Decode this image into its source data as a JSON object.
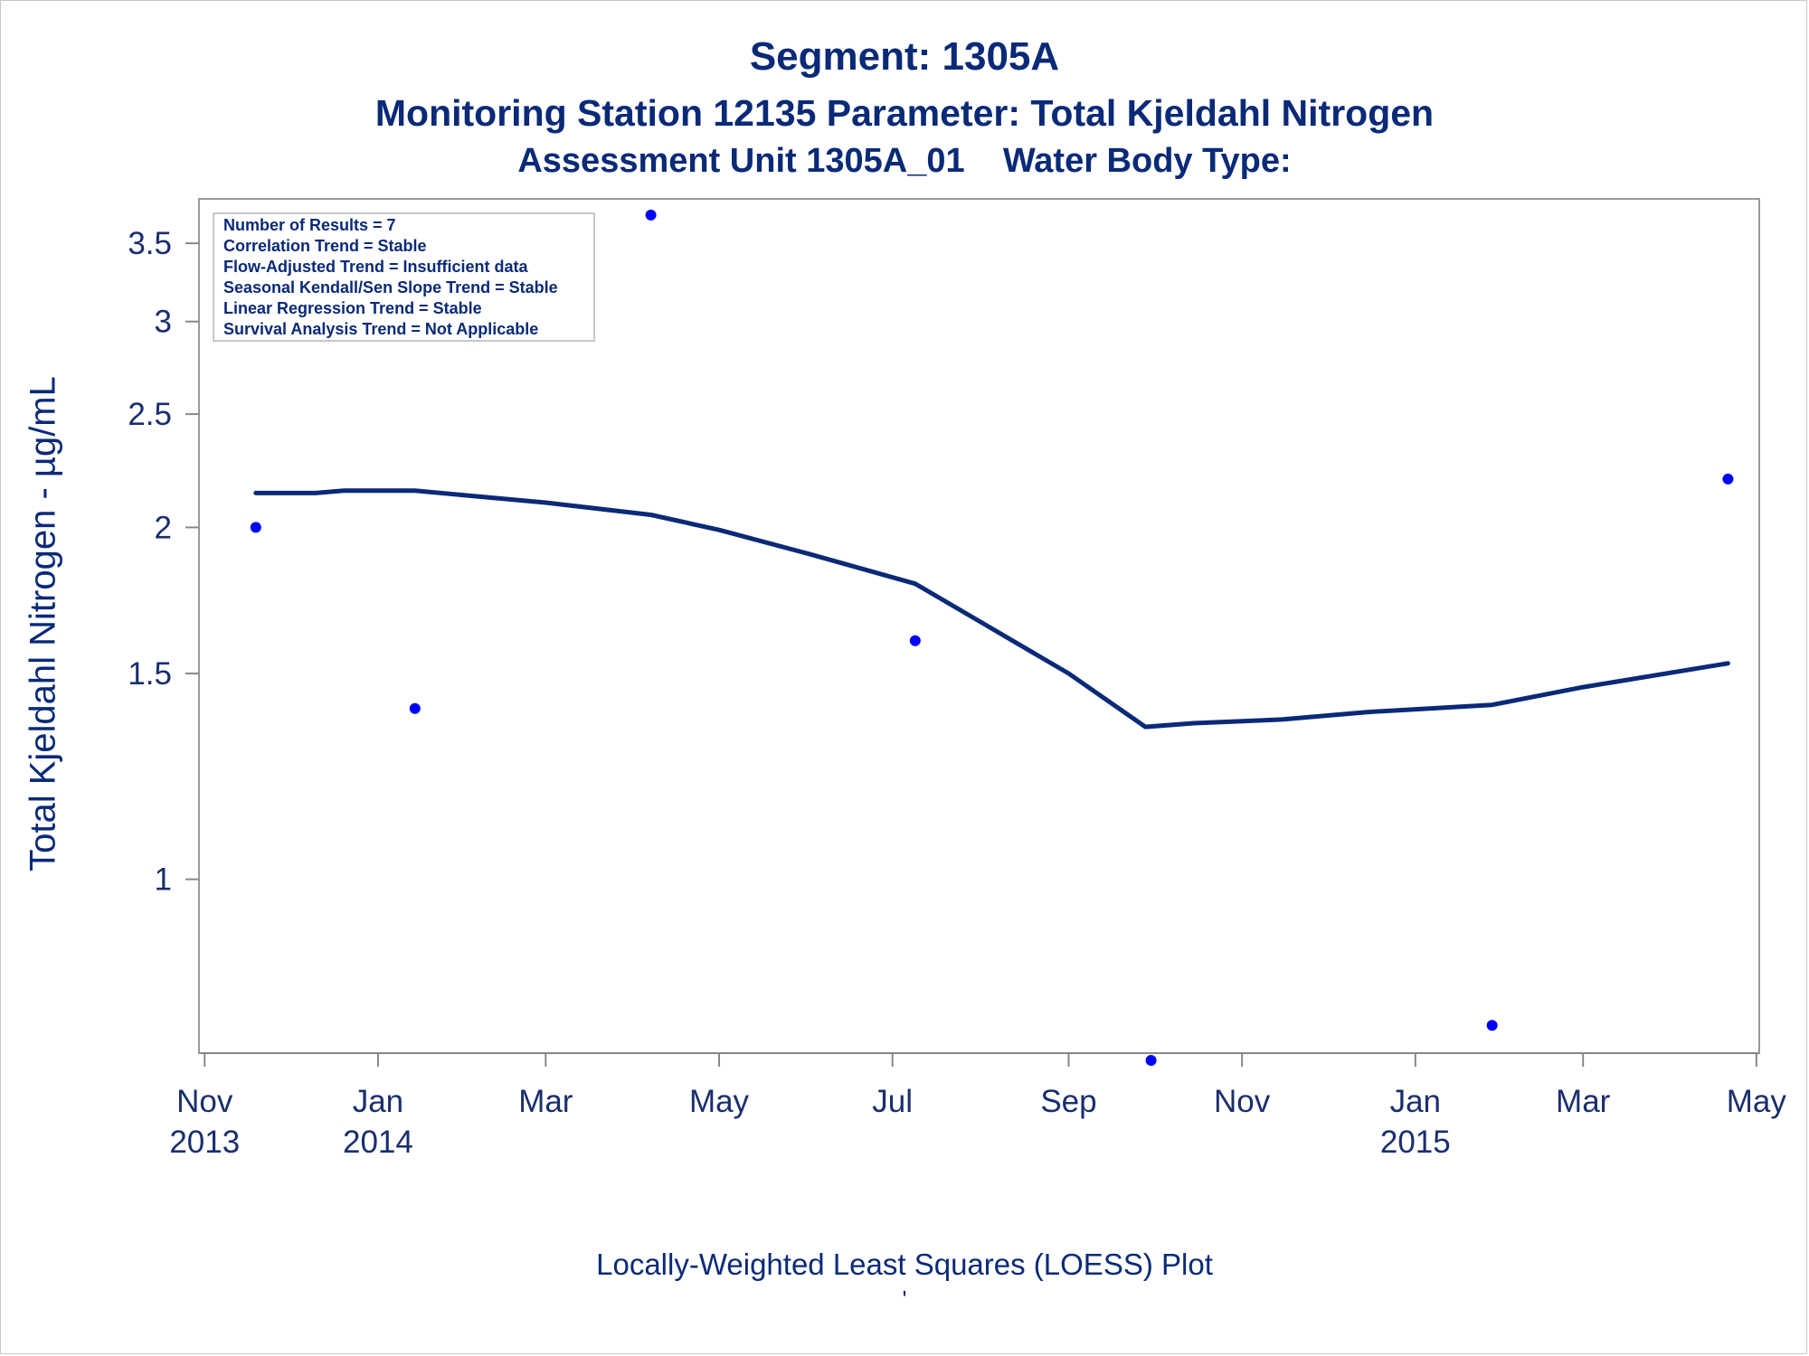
{
  "titles": {
    "line1": "Segment: 1305A",
    "line2": "Monitoring Station 12135 Parameter: Total Kjeldahl Nitrogen",
    "line3": "Assessment Unit 1305A_01    Water Body Type:"
  },
  "footer": {
    "caption": "Locally-Weighted Least Squares (LOESS) Plot",
    "mark": "'"
  },
  "info_box": [
    "Number of Results = 7",
    "Correlation Trend = Stable",
    "Flow-Adjusted Trend = Insufficient data",
    "Seasonal Kendall/Sen Slope Trend = Stable",
    "Linear Regression Trend = Stable",
    "Survival Analysis Trend = Not Applicable"
  ],
  "colors": {
    "title": "#0a2a78",
    "loess_line": "#0a2a78",
    "points": "#0000ff",
    "axis": "#888888"
  },
  "chart_data": {
    "type": "scatter",
    "ylabel": "Total Kjeldahl Nitrogen -  µg/mL",
    "xlabel": "",
    "y_scale": "log",
    "ylim": [
      0.71,
      3.82
    ],
    "xlim": [
      "2013-10-30",
      "2015-05-02"
    ],
    "y_ticks": [
      {
        "value": 1,
        "label": "1"
      },
      {
        "value": 1.5,
        "label": "1.5"
      },
      {
        "value": 2,
        "label": "2"
      },
      {
        "value": 2.5,
        "label": "2.5"
      },
      {
        "value": 3,
        "label": "3"
      },
      {
        "value": 3.5,
        "label": "3.5"
      }
    ],
    "x_ticks": [
      {
        "date": "2013-11-01",
        "month": "Nov",
        "year": "2013"
      },
      {
        "date": "2014-01-01",
        "month": "Jan",
        "year": "2014"
      },
      {
        "date": "2014-03-01",
        "month": "Mar",
        "year": ""
      },
      {
        "date": "2014-05-01",
        "month": "May",
        "year": ""
      },
      {
        "date": "2014-07-01",
        "month": "Jul",
        "year": ""
      },
      {
        "date": "2014-09-01",
        "month": "Sep",
        "year": ""
      },
      {
        "date": "2014-11-01",
        "month": "Nov",
        "year": ""
      },
      {
        "date": "2015-01-01",
        "month": "Jan",
        "year": "2015"
      },
      {
        "date": "2015-03-01",
        "month": "Mar",
        "year": ""
      },
      {
        "date": "2015-05-01",
        "month": "May",
        "year": ""
      }
    ],
    "series": [
      {
        "type": "scatter",
        "points": [
          {
            "x": "2013-11-19",
            "y": 2.0
          },
          {
            "x": "2014-01-14",
            "y": 1.4
          },
          {
            "x": "2014-04-07",
            "y": 3.7
          },
          {
            "x": "2014-07-09",
            "y": 1.6
          },
          {
            "x": "2014-09-30",
            "y": 0.7
          },
          {
            "x": "2015-01-28",
            "y": 0.75
          },
          {
            "x": "2015-04-21",
            "y": 2.2
          }
        ]
      },
      {
        "type": "line",
        "points": [
          {
            "x": "2013-11-19",
            "y": 2.14
          },
          {
            "x": "2013-12-10",
            "y": 2.14
          },
          {
            "x": "2013-12-20",
            "y": 2.15
          },
          {
            "x": "2014-01-14",
            "y": 2.15
          },
          {
            "x": "2014-02-01",
            "y": 2.13
          },
          {
            "x": "2014-03-01",
            "y": 2.1
          },
          {
            "x": "2014-04-07",
            "y": 2.05
          },
          {
            "x": "2014-05-01",
            "y": 1.99
          },
          {
            "x": "2014-06-01",
            "y": 1.9
          },
          {
            "x": "2014-06-25",
            "y": 1.83
          },
          {
            "x": "2014-07-09",
            "y": 1.79
          },
          {
            "x": "2014-08-01",
            "y": 1.66
          },
          {
            "x": "2014-09-01",
            "y": 1.5
          },
          {
            "x": "2014-09-28",
            "y": 1.35
          },
          {
            "x": "2014-10-15",
            "y": 1.36
          },
          {
            "x": "2014-11-15",
            "y": 1.37
          },
          {
            "x": "2014-12-15",
            "y": 1.39
          },
          {
            "x": "2015-01-28",
            "y": 1.41
          },
          {
            "x": "2015-03-01",
            "y": 1.46
          },
          {
            "x": "2015-04-21",
            "y": 1.53
          }
        ]
      }
    ]
  }
}
